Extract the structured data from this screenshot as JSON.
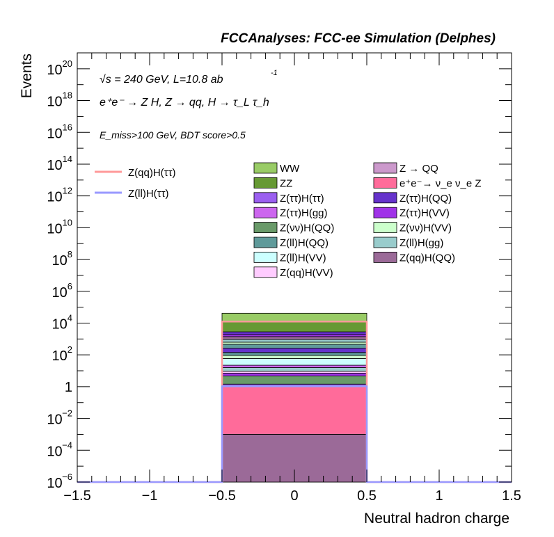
{
  "chart_data": {
    "type": "bar",
    "title": "FCCAnalyses: FCC-ee Simulation (Delphes)",
    "annotations": {
      "energy": "√s = 240 GeV, L=10.8 ab",
      "energy_exp": "-1",
      "process": "e⁺e⁻ → Z H, Z → qq, H → τ_L τ_h",
      "selection": "E_miss>100 GeV, BDT score>0.5"
    },
    "xlabel": "Neutral hadron charge",
    "ylabel": "Events",
    "xlim": [
      -1.5,
      1.5
    ],
    "ylim_log10": [
      -6,
      21
    ],
    "log_y": true,
    "x_ticks": [
      {
        "v": -1.5,
        "label": "−1.5"
      },
      {
        "v": -1,
        "label": "−1"
      },
      {
        "v": -0.5,
        "label": "−0.5"
      },
      {
        "v": 0,
        "label": "0"
      },
      {
        "v": 0.5,
        "label": "0.5"
      },
      {
        "v": 1,
        "label": "1"
      },
      {
        "v": 1.5,
        "label": "1.5"
      }
    ],
    "y_ticks": [
      {
        "e": -6,
        "base": "10",
        "exp": "−6"
      },
      {
        "e": -4,
        "base": "10",
        "exp": "−4"
      },
      {
        "e": -2,
        "base": "10",
        "exp": "−2"
      },
      {
        "e": 0,
        "base": "1",
        "exp": ""
      },
      {
        "e": 2,
        "base": "10",
        "exp": "2"
      },
      {
        "e": 4,
        "base": "10",
        "exp": "4"
      },
      {
        "e": 6,
        "base": "10",
        "exp": "6"
      },
      {
        "e": 8,
        "base": "10",
        "exp": "8"
      },
      {
        "e": 10,
        "base": "10",
        "exp": "10"
      },
      {
        "e": 12,
        "base": "10",
        "exp": "12"
      },
      {
        "e": 14,
        "base": "10",
        "exp": "14"
      },
      {
        "e": 16,
        "base": "10",
        "exp": "16"
      },
      {
        "e": 18,
        "base": "10",
        "exp": "18"
      },
      {
        "e": 20,
        "base": "10",
        "exp": "20"
      }
    ],
    "bin": [
      -0.5,
      0.5
    ],
    "stack_log10_tops": [
      {
        "name": "Z(qq)H(QQ)",
        "color": "#9b6a98",
        "top": -3.0
      },
      {
        "name": "e⁺e⁻ → ν_e ν_e Z",
        "color": "#ff6b9a",
        "top": 0.04
      },
      {
        "name": "Z(ττ)H(ττ)",
        "color": "#9b5ff0",
        "top": 0.16
      },
      {
        "name": "Z(νν)H(QQ)",
        "color": "#699a69",
        "top": 0.67
      },
      {
        "name": "Z(ττ)H(VV)",
        "color": "#a033e8",
        "top": 0.85
      },
      {
        "name": "Z(qq)H(VV)",
        "color": "#ffccff",
        "top": 0.97
      },
      {
        "name": "Z(ll)H(gg)",
        "color": "#99cccc",
        "top": 1.2
      },
      {
        "name": "Z(ττ)H(gg)",
        "color": "#cc66ee",
        "top": 1.35
      },
      {
        "name": "Z(ll)H(VV)",
        "color": "#ccffff",
        "top": 1.77
      },
      {
        "name": "Z(νν)H(VV)",
        "color": "#ccffcc",
        "top": 1.97
      },
      {
        "name": "Z(ll)H(QQ)",
        "color": "#5f9a9a",
        "top": 2.15
      },
      {
        "name": "Z(ττ)H(QQ)",
        "color": "#6633cc",
        "top": 2.42
      },
      {
        "name": "Z(ll)H(QQ)",
        "color": "#5f9a9a",
        "top": 2.67
      },
      {
        "name": "Z(νν)H(VV)",
        "color": "#ccffcc",
        "top": 2.8
      },
      {
        "name": "Z(ll)H(gg)",
        "color": "#99cccc",
        "top": 2.97
      },
      {
        "name": "Z(qq)H(QQ)",
        "color": "#9b6a98",
        "top": 3.15
      },
      {
        "name": "Z(ττ)H(VV)",
        "color": "#a033e8",
        "top": 3.28
      },
      {
        "name": "Z(ττ)H(QQ)",
        "color": "#6633cc",
        "top": 3.45
      },
      {
        "name": "ZZ",
        "color": "#669933",
        "top": 4.1
      },
      {
        "name": "WW",
        "color": "#99cc66",
        "top": 4.62
      }
    ],
    "signal_lines": [
      {
        "name": "Z(qq)H(ττ)",
        "color": "#ff9999",
        "log10_value": 4.1
      },
      {
        "name": "Z(ll)H(ττ)",
        "color": "#9999ff",
        "log10_value": 0.02
      }
    ],
    "legend_left": [
      {
        "name": "Z(qq)H(ττ)",
        "color": "#ff9999",
        "kind": "line"
      },
      {
        "name": "Z(ll)H(ττ)",
        "color": "#9999ff",
        "kind": "line"
      }
    ],
    "legend_col1": [
      {
        "name": "WW",
        "color": "#99cc66"
      },
      {
        "name": "ZZ",
        "color": "#669933"
      },
      {
        "name": "Z(ττ)H(ττ)",
        "color": "#9b5ff0"
      },
      {
        "name": "Z(ττ)H(gg)",
        "color": "#cc66ee"
      },
      {
        "name": "Z(νν)H(QQ)",
        "color": "#699a69"
      },
      {
        "name": "Z(ll)H(QQ)",
        "color": "#5f9a9a"
      },
      {
        "name": "Z(ll)H(VV)",
        "color": "#ccffff"
      },
      {
        "name": "Z(qq)H(VV)",
        "color": "#ffccff"
      }
    ],
    "legend_col2": [
      {
        "name": "Z → QQ",
        "color": "#cc99cc"
      },
      {
        "name": "e⁺e⁻→ ν_e ν_e Z",
        "color": "#ff6b9a"
      },
      {
        "name": "Z(ττ)H(QQ)",
        "color": "#6633cc"
      },
      {
        "name": "Z(ττ)H(VV)",
        "color": "#a033e8"
      },
      {
        "name": "Z(νν)H(VV)",
        "color": "#ccffcc"
      },
      {
        "name": "Z(ll)H(gg)",
        "color": "#99cccc"
      },
      {
        "name": "Z(qq)H(QQ)",
        "color": "#9b6a98"
      }
    ]
  }
}
